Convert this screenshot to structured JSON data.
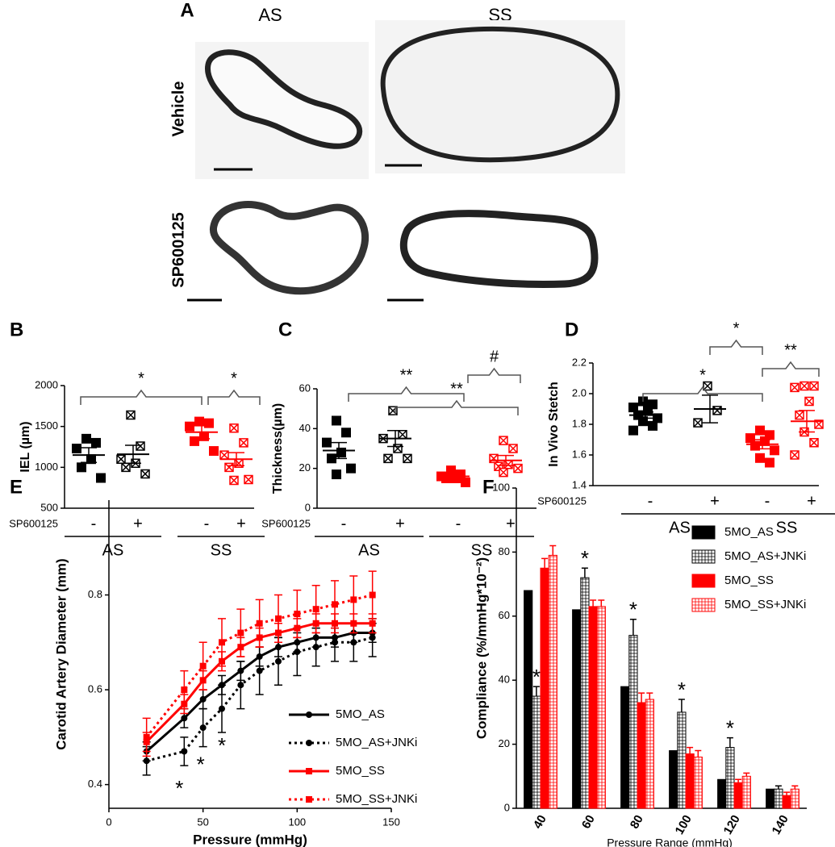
{
  "panel_a": {
    "label": "A",
    "columns": [
      "AS",
      "SS"
    ],
    "rows": [
      "Vehicle",
      "SP600125"
    ]
  },
  "chart_data": [
    {
      "type": "dot_plot",
      "panel_label": "B",
      "ylabel": "IEL (µm)",
      "ylim": [
        500,
        2000
      ],
      "yticks": [
        500,
        1000,
        1500,
        2000
      ],
      "categories": [
        "-",
        "+",
        "-",
        "+"
      ],
      "groups": [
        "AS",
        "SS"
      ],
      "treatment_label": "SP600125",
      "colors": [
        "#000000",
        "#000000",
        "#ff0000",
        "#ff0000"
      ],
      "crossed": [
        false,
        true,
        false,
        true
      ],
      "points": [
        [
          1350,
          1300,
          1230,
          1100,
          1000,
          870
        ],
        [
          1640,
          1260,
          1100,
          1050,
          1000,
          920
        ],
        [
          1560,
          1540,
          1500,
          1380,
          1320,
          1200
        ],
        [
          1480,
          1300,
          1150,
          1050,
          1000,
          850,
          840
        ]
      ],
      "means": [
        1150,
        1160,
        1430,
        1100
      ],
      "sems": [
        90,
        110,
        80,
        80
      ],
      "annotations": [
        "*",
        "*"
      ]
    },
    {
      "type": "dot_plot",
      "panel_label": "C",
      "ylabel": "Thickness(µm)",
      "ylim": [
        0,
        60
      ],
      "yticks": [
        0,
        20,
        40,
        60
      ],
      "categories": [
        "-",
        "+",
        "-",
        "+"
      ],
      "groups": [
        "AS",
        "SS"
      ],
      "treatment_label": "SP600125",
      "colors": [
        "#000000",
        "#000000",
        "#ff0000",
        "#ff0000"
      ],
      "crossed": [
        false,
        true,
        false,
        true
      ],
      "points": [
        [
          44,
          38,
          33,
          28,
          25,
          20,
          17
        ],
        [
          49,
          37,
          35,
          30,
          25,
          25
        ],
        [
          19,
          17,
          16,
          15,
          15,
          13
        ],
        [
          34,
          30,
          25,
          22,
          21,
          20,
          18
        ]
      ],
      "means": [
        29,
        35,
        16,
        24
      ],
      "sems": [
        4,
        4,
        1.3,
        2.5
      ],
      "annotations": [
        "**",
        "**",
        "#"
      ]
    },
    {
      "type": "dot_plot",
      "panel_label": "D",
      "ylabel": "In Vivo Stetch",
      "ylim": [
        1.4,
        2.2
      ],
      "yticks": [
        1.4,
        1.6,
        1.8,
        {
          "value": 2,
          "label": "2.0"
        },
        2.2
      ],
      "categories": [
        "-",
        "+",
        "-",
        "+"
      ],
      "groups": [
        "AS",
        "SS"
      ],
      "treatment_label": "SP600125",
      "colors": [
        "#000000",
        "#000000",
        "#ff0000",
        "#ff0000"
      ],
      "crossed": [
        false,
        true,
        false,
        true
      ],
      "points": [
        [
          1.95,
          1.93,
          1.91,
          1.89,
          1.86,
          1.84,
          1.82,
          1.79,
          1.76
        ],
        [
          2.05,
          1.89,
          1.81
        ],
        [
          1.76,
          1.73,
          1.71,
          1.69,
          1.66,
          1.63,
          1.58,
          1.55
        ],
        [
          2.05,
          2.05,
          2.04,
          1.95,
          1.86,
          1.8,
          1.75,
          1.68,
          1.6
        ]
      ],
      "means": [
        1.86,
        1.9,
        1.67,
        1.82
      ],
      "sems": [
        0.02,
        0.09,
        0.03,
        0.07
      ],
      "annotations": [
        "*",
        "**",
        "*"
      ]
    },
    {
      "type": "line",
      "panel_label": "E",
      "xlabel": "Pressure (mmHg)",
      "ylabel": "Carotid Artery Diameter (mm)",
      "xlim": [
        0,
        150
      ],
      "xticks": [
        0,
        50,
        100,
        150
      ],
      "ylim": [
        0.35,
        1.0
      ],
      "yticks": [
        0.4,
        0.6,
        0.8
      ],
      "x": [
        20,
        40,
        50,
        60,
        70,
        80,
        90,
        100,
        110,
        120,
        130,
        140
      ],
      "series": [
        {
          "name": "5MO_AS",
          "color": "#000000",
          "dash": "solid",
          "marker": "circle",
          "values": [
            0.47,
            0.54,
            0.58,
            0.61,
            0.64,
            0.67,
            0.69,
            0.7,
            0.71,
            0.71,
            0.72,
            0.72
          ],
          "errors": [
            0.02,
            0.02,
            0.02,
            0.02,
            0.02,
            0.02,
            0.02,
            0.02,
            0.02,
            0.02,
            0.02,
            0.02
          ]
        },
        {
          "name": "5MO_AS+JNKi",
          "color": "#000000",
          "dash": "dotted",
          "marker": "circle",
          "values": [
            0.45,
            0.47,
            0.52,
            0.56,
            0.61,
            0.64,
            0.66,
            0.68,
            0.69,
            0.7,
            0.7,
            0.71
          ],
          "errors": [
            0.03,
            0.03,
            0.04,
            0.05,
            0.05,
            0.05,
            0.05,
            0.05,
            0.04,
            0.04,
            0.04,
            0.04
          ]
        },
        {
          "name": "5MO_SS",
          "color": "#ff0000",
          "dash": "solid",
          "marker": "square",
          "values": [
            0.49,
            0.57,
            0.62,
            0.66,
            0.69,
            0.71,
            0.72,
            0.73,
            0.74,
            0.74,
            0.74,
            0.74
          ],
          "errors": [
            0.02,
            0.02,
            0.02,
            0.02,
            0.02,
            0.02,
            0.02,
            0.02,
            0.02,
            0.02,
            0.02,
            0.02
          ]
        },
        {
          "name": "5MO_SS+JNKi",
          "color": "#ff0000",
          "dash": "dotted",
          "marker": "square",
          "values": [
            0.5,
            0.6,
            0.65,
            0.7,
            0.72,
            0.74,
            0.75,
            0.76,
            0.77,
            0.78,
            0.79,
            0.8
          ],
          "errors": [
            0.04,
            0.04,
            0.05,
            0.05,
            0.05,
            0.05,
            0.05,
            0.05,
            0.05,
            0.05,
            0.05,
            0.05
          ]
        }
      ],
      "annotations": [
        "*",
        "*",
        "*"
      ]
    },
    {
      "type": "bar",
      "panel_label": "F",
      "xlabel": "Pressure Range (mmHg)",
      "ylabel": "Compliance (%/mmHg*10⁻²)",
      "ylim": [
        0,
        100
      ],
      "yticks": [
        0,
        20,
        40,
        60,
        80,
        100
      ],
      "categories": [
        "40",
        "60",
        "80",
        "100",
        "120",
        "140"
      ],
      "series": [
        {
          "name": "5MO_AS",
          "color": "#000000",
          "filled": true,
          "hatched": false,
          "values": [
            68,
            62,
            38,
            18,
            9,
            6
          ]
        },
        {
          "name": "5MO_AS+JNKi",
          "color": "#000000",
          "filled": false,
          "hatched": true,
          "values": [
            35,
            72,
            54,
            30,
            19,
            6
          ],
          "errors": [
            3,
            3,
            5,
            4,
            3,
            1
          ]
        },
        {
          "name": "5MO_SS",
          "color": "#ff0000",
          "filled": true,
          "hatched": false,
          "values": [
            75,
            63,
            33,
            17,
            8,
            4
          ],
          "errors": [
            3,
            2,
            3,
            2,
            1,
            1
          ]
        },
        {
          "name": "5MO_SS+JNKi",
          "color": "#ff0000",
          "filled": false,
          "hatched": true,
          "values": [
            79,
            63,
            34,
            16,
            10,
            6
          ],
          "errors": [
            3,
            2,
            2,
            2,
            1,
            1
          ]
        }
      ],
      "annotations": [
        "*",
        "*",
        "*",
        "*",
        "*"
      ]
    }
  ]
}
